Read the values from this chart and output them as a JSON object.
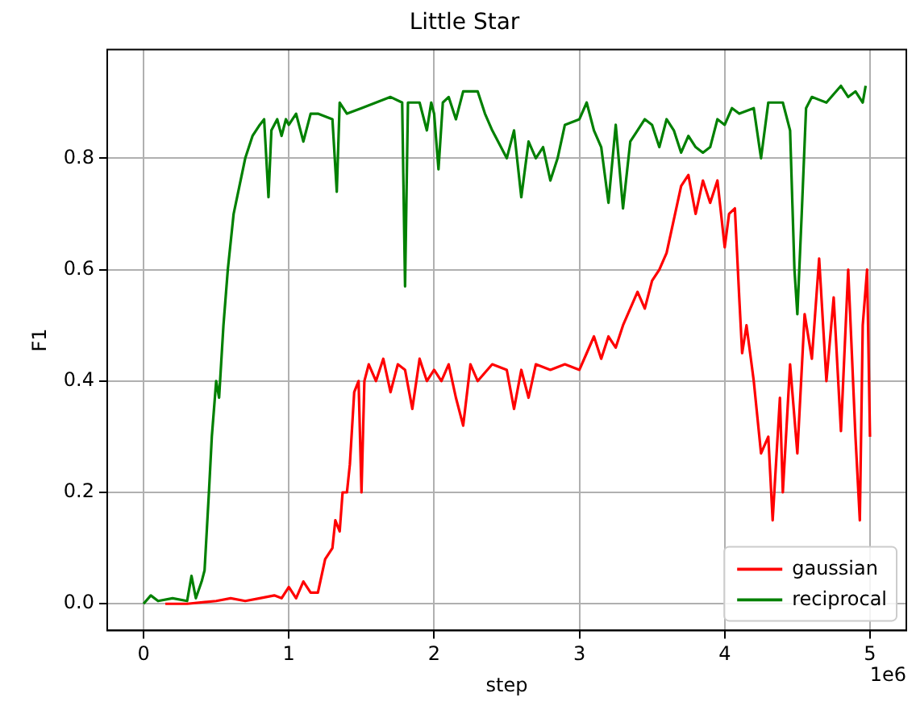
{
  "chart_data": {
    "type": "line",
    "title": "Little Star",
    "xlabel": "step",
    "ylabel": "F1",
    "annotations": [
      "1e6"
    ],
    "xlim": [
      -0.25,
      5.25
    ],
    "xticks": [
      0,
      1,
      2,
      3,
      4,
      5
    ],
    "ylim": [
      -0.048,
      0.995
    ],
    "yticks": [
      {
        "value": 0,
        "label": "0.0"
      },
      {
        "value": 0.2,
        "label": "0.2"
      },
      {
        "value": 0.4,
        "label": "0.4"
      },
      {
        "value": 0.6,
        "label": "0.6"
      },
      {
        "value": 0.8,
        "label": "0.8"
      }
    ],
    "grid": true,
    "legend": "bottom right",
    "marker": "none",
    "line_style": "solid",
    "series": [
      {
        "name": "gaussian",
        "color": "#ff0000",
        "x": [
          0.15,
          0.3,
          0.5,
          0.6,
          0.7,
          0.8,
          0.9,
          0.95,
          1.0,
          1.05,
          1.1,
          1.15,
          1.2,
          1.25,
          1.3,
          1.32,
          1.35,
          1.37,
          1.4,
          1.42,
          1.45,
          1.48,
          1.5,
          1.52,
          1.55,
          1.6,
          1.65,
          1.7,
          1.75,
          1.8,
          1.85,
          1.9,
          1.95,
          2.0,
          2.05,
          2.1,
          2.15,
          2.2,
          2.25,
          2.3,
          2.4,
          2.5,
          2.55,
          2.6,
          2.65,
          2.7,
          2.8,
          2.9,
          3.0,
          3.05,
          3.1,
          3.15,
          3.2,
          3.25,
          3.3,
          3.35,
          3.4,
          3.45,
          3.5,
          3.55,
          3.6,
          3.65,
          3.7,
          3.75,
          3.8,
          3.85,
          3.9,
          3.95,
          4.0,
          4.03,
          4.07,
          4.1,
          4.12,
          4.15,
          4.18,
          4.2,
          4.25,
          4.3,
          4.33,
          4.38,
          4.4,
          4.45,
          4.5,
          4.55,
          4.6,
          4.65,
          4.7,
          4.75,
          4.8,
          4.85,
          4.9,
          4.93,
          4.95,
          4.98,
          5.0
        ],
        "values": [
          0.0,
          0.0,
          0.005,
          0.01,
          0.005,
          0.01,
          0.015,
          0.01,
          0.03,
          0.01,
          0.04,
          0.02,
          0.02,
          0.08,
          0.1,
          0.15,
          0.13,
          0.2,
          0.2,
          0.25,
          0.38,
          0.4,
          0.2,
          0.4,
          0.43,
          0.4,
          0.44,
          0.38,
          0.43,
          0.42,
          0.35,
          0.44,
          0.4,
          0.42,
          0.4,
          0.43,
          0.37,
          0.32,
          0.43,
          0.4,
          0.43,
          0.42,
          0.35,
          0.42,
          0.37,
          0.43,
          0.42,
          0.43,
          0.42,
          0.45,
          0.48,
          0.44,
          0.48,
          0.46,
          0.5,
          0.53,
          0.56,
          0.53,
          0.58,
          0.6,
          0.63,
          0.69,
          0.75,
          0.77,
          0.7,
          0.76,
          0.72,
          0.76,
          0.64,
          0.7,
          0.71,
          0.55,
          0.45,
          0.5,
          0.44,
          0.4,
          0.27,
          0.3,
          0.15,
          0.37,
          0.2,
          0.43,
          0.27,
          0.52,
          0.44,
          0.62,
          0.4,
          0.55,
          0.31,
          0.6,
          0.3,
          0.15,
          0.5,
          0.6,
          0.3
        ]
      },
      {
        "name": "reciprocal",
        "color": "#008000",
        "x": [
          0,
          0.05,
          0.1,
          0.2,
          0.3,
          0.33,
          0.36,
          0.4,
          0.42,
          0.45,
          0.47,
          0.5,
          0.52,
          0.55,
          0.58,
          0.62,
          0.66,
          0.7,
          0.75,
          0.8,
          0.83,
          0.86,
          0.88,
          0.92,
          0.95,
          0.98,
          1.0,
          1.05,
          1.1,
          1.15,
          1.2,
          1.3,
          1.33,
          1.35,
          1.4,
          1.5,
          1.6,
          1.7,
          1.78,
          1.8,
          1.82,
          1.9,
          1.95,
          1.98,
          2.0,
          2.03,
          2.06,
          2.1,
          2.15,
          2.2,
          2.3,
          2.35,
          2.4,
          2.5,
          2.55,
          2.6,
          2.65,
          2.7,
          2.75,
          2.8,
          2.85,
          2.9,
          3.0,
          3.05,
          3.1,
          3.15,
          3.2,
          3.25,
          3.3,
          3.35,
          3.4,
          3.45,
          3.5,
          3.55,
          3.6,
          3.65,
          3.7,
          3.75,
          3.8,
          3.85,
          3.9,
          3.95,
          4.0,
          4.05,
          4.1,
          4.2,
          4.25,
          4.3,
          4.4,
          4.45,
          4.48,
          4.5,
          4.53,
          4.56,
          4.6,
          4.7,
          4.8,
          4.85,
          4.9,
          4.95,
          4.97
        ],
        "values": [
          0.0,
          0.015,
          0.005,
          0.01,
          0.005,
          0.05,
          0.01,
          0.04,
          0.06,
          0.2,
          0.3,
          0.4,
          0.37,
          0.5,
          0.6,
          0.7,
          0.75,
          0.8,
          0.84,
          0.86,
          0.87,
          0.73,
          0.85,
          0.87,
          0.84,
          0.87,
          0.86,
          0.88,
          0.83,
          0.88,
          0.88,
          0.87,
          0.74,
          0.9,
          0.88,
          0.89,
          0.9,
          0.91,
          0.9,
          0.57,
          0.9,
          0.9,
          0.85,
          0.9,
          0.88,
          0.78,
          0.9,
          0.91,
          0.87,
          0.92,
          0.92,
          0.88,
          0.85,
          0.8,
          0.85,
          0.73,
          0.83,
          0.8,
          0.82,
          0.76,
          0.8,
          0.86,
          0.87,
          0.9,
          0.85,
          0.82,
          0.72,
          0.86,
          0.71,
          0.83,
          0.85,
          0.87,
          0.86,
          0.82,
          0.87,
          0.85,
          0.81,
          0.84,
          0.82,
          0.81,
          0.82,
          0.87,
          0.86,
          0.89,
          0.88,
          0.89,
          0.8,
          0.9,
          0.9,
          0.85,
          0.6,
          0.52,
          0.7,
          0.89,
          0.91,
          0.9,
          0.93,
          0.91,
          0.92,
          0.9,
          0.93
        ]
      }
    ]
  }
}
